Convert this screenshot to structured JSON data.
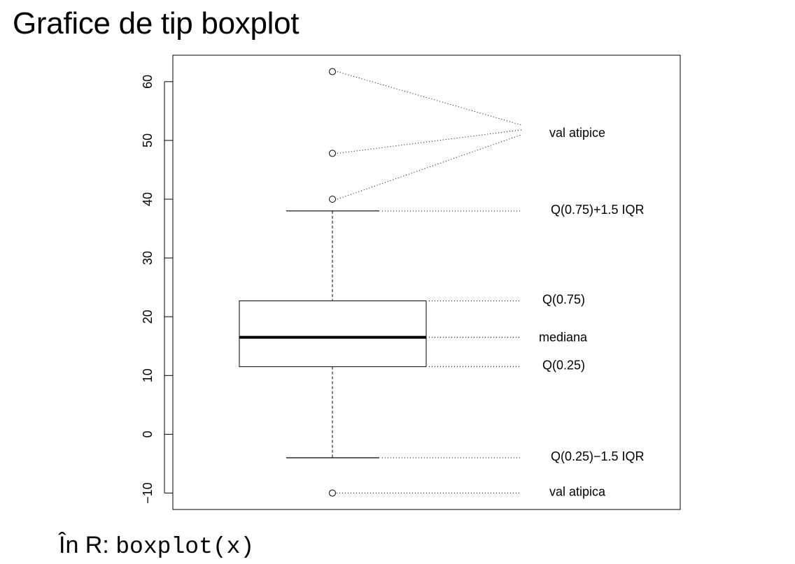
{
  "page": {
    "title": "Grafice de tip boxplot",
    "footer_prefix": "În R: ",
    "footer_code": "boxplot(x)"
  },
  "chart_data": {
    "type": "boxplot",
    "ylim": [
      -12.8,
      64.5
    ],
    "yticks": [
      -10,
      0,
      10,
      20,
      30,
      40,
      50,
      60
    ],
    "ytick_labels": [
      "−10",
      "0",
      "10",
      "20",
      "30",
      "40",
      "50",
      "60"
    ],
    "grid": false,
    "box": {
      "q1": 11.5,
      "median": 16.5,
      "q3": 22.7,
      "whisker_low": -4,
      "whisker_high": 38
    },
    "outliers": [
      {
        "value": 61.7,
        "group": "high"
      },
      {
        "value": 47.8,
        "group": "high"
      },
      {
        "value": 40.0,
        "group": "high"
      },
      {
        "value": -10.0,
        "group": "low"
      }
    ],
    "annotations": {
      "outliers_high": "val atipice",
      "whisker_high": "Q(0.75)+1.5 IQR",
      "q3": "Q(0.75)",
      "median": "mediana",
      "q1": "Q(0.25)",
      "whisker_low": "Q(0.25)−1.5 IQR",
      "outlier_low": "val atipica"
    }
  }
}
